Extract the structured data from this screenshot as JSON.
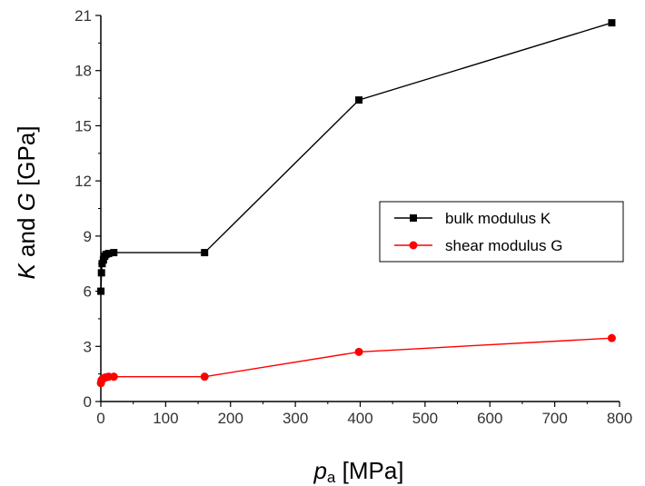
{
  "chart_data": {
    "type": "line",
    "xlabel": {
      "var": "p",
      "sub": "a",
      "unit": " [MPa]"
    },
    "ylabel": {
      "k": "K",
      "and": " and ",
      "g": "G",
      "unit": " [GPa]"
    },
    "xlim": [
      0,
      800
    ],
    "ylim": [
      0,
      21
    ],
    "xticks": [
      0,
      100,
      200,
      300,
      400,
      500,
      600,
      700,
      800
    ],
    "yticks": [
      0,
      3,
      6,
      9,
      12,
      15,
      18,
      21
    ],
    "grid": false,
    "legend_position": "right",
    "series": [
      {
        "name": "bulk modulus K",
        "color": "#000000",
        "marker": "square",
        "x": [
          0.1,
          1,
          2,
          4,
          6,
          8,
          12,
          20,
          160,
          398,
          788
        ],
        "y": [
          6.0,
          7.0,
          7.5,
          7.7,
          7.9,
          8.0,
          8.05,
          8.1,
          8.1,
          16.4,
          20.6
        ]
      },
      {
        "name": "shear modulus G",
        "color": "#ff0000",
        "marker": "circle",
        "x": [
          0.1,
          1,
          2,
          4,
          6,
          8,
          12,
          20,
          160,
          398,
          788
        ],
        "y": [
          1.0,
          1.15,
          1.2,
          1.25,
          1.3,
          1.32,
          1.35,
          1.35,
          1.35,
          2.7,
          3.45
        ]
      }
    ]
  }
}
